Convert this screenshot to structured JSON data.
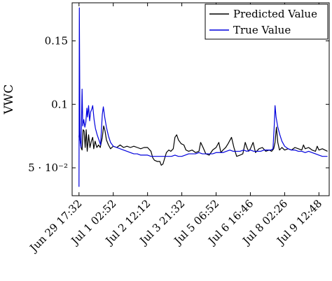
{
  "chart_data": {
    "type": "line",
    "title": "",
    "xlabel": "",
    "ylabel": "VWC",
    "ylim": [
      0.028,
      0.18
    ],
    "y_ticks": [
      {
        "value": 0.05,
        "label": "5 · 10⁻²"
      },
      {
        "value": 0.1,
        "label": "0.1"
      },
      {
        "value": 0.15,
        "label": "0.15"
      }
    ],
    "x_ticks": [
      "Jun 29 17:32",
      "Jul 1 02:52",
      "Jul 2 12:12",
      "Jul 3 21:32",
      "Jul 5 06:52",
      "Jul 6 16:46",
      "Jul 8 02:26",
      "Jul 9 12:48"
    ],
    "x_tick_index": [
      0,
      1,
      2,
      3,
      4,
      5,
      6,
      7
    ],
    "x_range": [
      -0.2,
      7.3
    ],
    "grid": false,
    "legend_position": "top-right",
    "series": [
      {
        "name": "Predicted Value",
        "color": "#000000",
        "points": [
          [
            0.0,
            0.074
          ],
          [
            0.02,
            0.081
          ],
          [
            0.04,
            0.07
          ],
          [
            0.06,
            0.066
          ],
          [
            0.09,
            0.064
          ],
          [
            0.12,
            0.08
          ],
          [
            0.15,
            0.079
          ],
          [
            0.18,
            0.066
          ],
          [
            0.21,
            0.08
          ],
          [
            0.24,
            0.063
          ],
          [
            0.28,
            0.076
          ],
          [
            0.32,
            0.066
          ],
          [
            0.36,
            0.071
          ],
          [
            0.4,
            0.074
          ],
          [
            0.43,
            0.065
          ],
          [
            0.47,
            0.071
          ],
          [
            0.52,
            0.066
          ],
          [
            0.57,
            0.068
          ],
          [
            0.62,
            0.066
          ],
          [
            0.68,
            0.074
          ],
          [
            0.72,
            0.083
          ],
          [
            0.76,
            0.079
          ],
          [
            0.8,
            0.072
          ],
          [
            0.86,
            0.068
          ],
          [
            0.92,
            0.065
          ],
          [
            1.0,
            0.067
          ],
          [
            1.1,
            0.066
          ],
          [
            1.2,
            0.068
          ],
          [
            1.3,
            0.066
          ],
          [
            1.4,
            0.067
          ],
          [
            1.5,
            0.066
          ],
          [
            1.6,
            0.067
          ],
          [
            1.7,
            0.066
          ],
          [
            1.8,
            0.065
          ],
          [
            1.9,
            0.066
          ],
          [
            2.0,
            0.066
          ],
          [
            2.1,
            0.063
          ],
          [
            2.15,
            0.058
          ],
          [
            2.2,
            0.056
          ],
          [
            2.28,
            0.055
          ],
          [
            2.36,
            0.055
          ],
          [
            2.4,
            0.052
          ],
          [
            2.45,
            0.053
          ],
          [
            2.55,
            0.062
          ],
          [
            2.62,
            0.064
          ],
          [
            2.68,
            0.063
          ],
          [
            2.75,
            0.065
          ],
          [
            2.8,
            0.074
          ],
          [
            2.85,
            0.076
          ],
          [
            2.9,
            0.072
          ],
          [
            2.98,
            0.069
          ],
          [
            3.06,
            0.068
          ],
          [
            3.12,
            0.064
          ],
          [
            3.2,
            0.063
          ],
          [
            3.3,
            0.064
          ],
          [
            3.4,
            0.062
          ],
          [
            3.5,
            0.063
          ],
          [
            3.55,
            0.07
          ],
          [
            3.62,
            0.066
          ],
          [
            3.7,
            0.061
          ],
          [
            3.8,
            0.06
          ],
          [
            3.9,
            0.064
          ],
          [
            4.0,
            0.066
          ],
          [
            4.08,
            0.07
          ],
          [
            4.14,
            0.062
          ],
          [
            4.2,
            0.064
          ],
          [
            4.28,
            0.066
          ],
          [
            4.35,
            0.069
          ],
          [
            4.45,
            0.074
          ],
          [
            4.52,
            0.066
          ],
          [
            4.6,
            0.059
          ],
          [
            4.7,
            0.06
          ],
          [
            4.78,
            0.061
          ],
          [
            4.85,
            0.07
          ],
          [
            4.9,
            0.066
          ],
          [
            4.95,
            0.063
          ],
          [
            5.0,
            0.065
          ],
          [
            5.08,
            0.07
          ],
          [
            5.15,
            0.062
          ],
          [
            5.25,
            0.065
          ],
          [
            5.35,
            0.066
          ],
          [
            5.45,
            0.063
          ],
          [
            5.55,
            0.064
          ],
          [
            5.62,
            0.063
          ],
          [
            5.68,
            0.065
          ],
          [
            5.72,
            0.07
          ],
          [
            5.76,
            0.082
          ],
          [
            5.8,
            0.07
          ],
          [
            5.85,
            0.064
          ],
          [
            5.92,
            0.066
          ],
          [
            6.0,
            0.064
          ],
          [
            6.1,
            0.065
          ],
          [
            6.2,
            0.064
          ],
          [
            6.3,
            0.066
          ],
          [
            6.4,
            0.065
          ],
          [
            6.5,
            0.064
          ],
          [
            6.55,
            0.068
          ],
          [
            6.6,
            0.065
          ],
          [
            6.7,
            0.066
          ],
          [
            6.8,
            0.064
          ],
          [
            6.9,
            0.063
          ],
          [
            6.95,
            0.067
          ],
          [
            7.0,
            0.064
          ],
          [
            7.1,
            0.065
          ],
          [
            7.25,
            0.063
          ]
        ]
      },
      {
        "name": "True Value",
        "color": "#0000dd",
        "points": [
          [
            0.0,
            0.035
          ],
          [
            0.01,
            0.176
          ],
          [
            0.03,
            0.072
          ],
          [
            0.06,
            0.066
          ],
          [
            0.09,
            0.112
          ],
          [
            0.11,
            0.083
          ],
          [
            0.14,
            0.088
          ],
          [
            0.17,
            0.082
          ],
          [
            0.2,
            0.086
          ],
          [
            0.23,
            0.097
          ],
          [
            0.25,
            0.09
          ],
          [
            0.28,
            0.099
          ],
          [
            0.31,
            0.087
          ],
          [
            0.34,
            0.094
          ],
          [
            0.37,
            0.096
          ],
          [
            0.4,
            0.099
          ],
          [
            0.44,
            0.088
          ],
          [
            0.48,
            0.081
          ],
          [
            0.53,
            0.076
          ],
          [
            0.58,
            0.072
          ],
          [
            0.63,
            0.068
          ],
          [
            0.68,
            0.092
          ],
          [
            0.71,
            0.098
          ],
          [
            0.75,
            0.09
          ],
          [
            0.8,
            0.082
          ],
          [
            0.86,
            0.075
          ],
          [
            0.92,
            0.07
          ],
          [
            1.0,
            0.067
          ],
          [
            1.1,
            0.066
          ],
          [
            1.2,
            0.065
          ],
          [
            1.3,
            0.064
          ],
          [
            1.4,
            0.063
          ],
          [
            1.5,
            0.062
          ],
          [
            1.6,
            0.061
          ],
          [
            1.7,
            0.061
          ],
          [
            1.8,
            0.06
          ],
          [
            1.9,
            0.06
          ],
          [
            2.0,
            0.06
          ],
          [
            2.1,
            0.059
          ],
          [
            2.2,
            0.059
          ],
          [
            2.3,
            0.059
          ],
          [
            2.4,
            0.059
          ],
          [
            2.5,
            0.059
          ],
          [
            2.6,
            0.059
          ],
          [
            2.7,
            0.059
          ],
          [
            2.8,
            0.06
          ],
          [
            2.9,
            0.059
          ],
          [
            3.0,
            0.059
          ],
          [
            3.1,
            0.06
          ],
          [
            3.2,
            0.061
          ],
          [
            3.3,
            0.061
          ],
          [
            3.4,
            0.061
          ],
          [
            3.5,
            0.062
          ],
          [
            3.6,
            0.061
          ],
          [
            3.7,
            0.061
          ],
          [
            3.8,
            0.061
          ],
          [
            3.9,
            0.061
          ],
          [
            4.0,
            0.062
          ],
          [
            4.1,
            0.062
          ],
          [
            4.2,
            0.062
          ],
          [
            4.3,
            0.063
          ],
          [
            4.4,
            0.064
          ],
          [
            4.5,
            0.063
          ],
          [
            4.6,
            0.063
          ],
          [
            4.7,
            0.063
          ],
          [
            4.8,
            0.064
          ],
          [
            4.9,
            0.063
          ],
          [
            5.0,
            0.064
          ],
          [
            5.1,
            0.063
          ],
          [
            5.2,
            0.063
          ],
          [
            5.3,
            0.063
          ],
          [
            5.4,
            0.064
          ],
          [
            5.5,
            0.064
          ],
          [
            5.6,
            0.064
          ],
          [
            5.66,
            0.065
          ],
          [
            5.7,
            0.085
          ],
          [
            5.72,
            0.099
          ],
          [
            5.75,
            0.09
          ],
          [
            5.8,
            0.082
          ],
          [
            5.86,
            0.076
          ],
          [
            5.92,
            0.071
          ],
          [
            6.0,
            0.067
          ],
          [
            6.1,
            0.065
          ],
          [
            6.2,
            0.064
          ],
          [
            6.3,
            0.064
          ],
          [
            6.4,
            0.063
          ],
          [
            6.5,
            0.063
          ],
          [
            6.6,
            0.062
          ],
          [
            6.7,
            0.063
          ],
          [
            6.8,
            0.062
          ],
          [
            6.9,
            0.061
          ],
          [
            7.0,
            0.06
          ],
          [
            7.1,
            0.059
          ],
          [
            7.25,
            0.059
          ]
        ]
      }
    ]
  }
}
